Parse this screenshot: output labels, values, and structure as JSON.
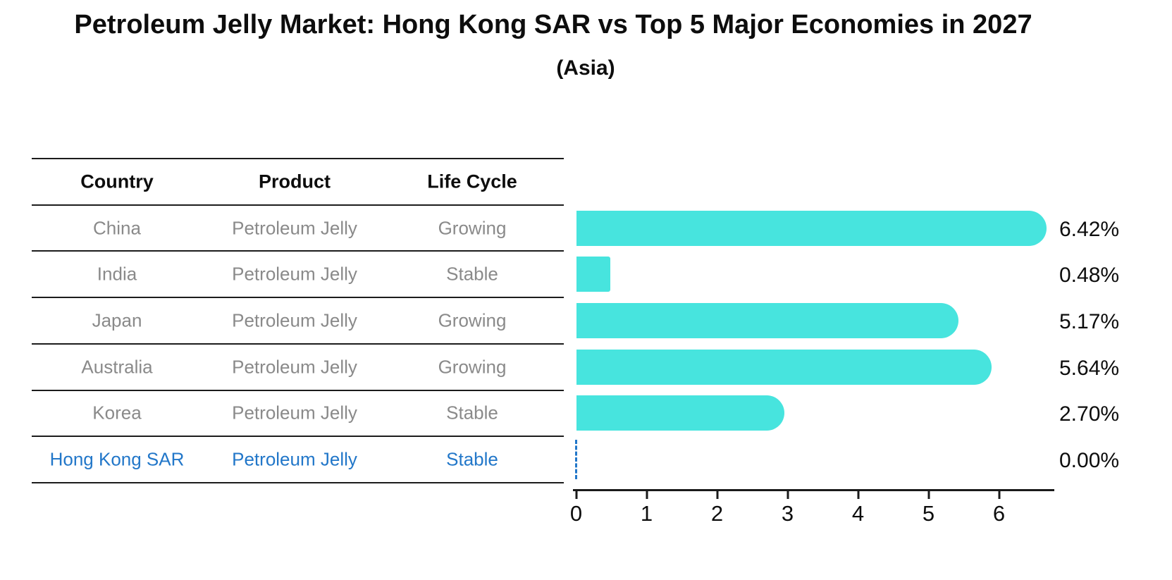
{
  "title": "Petroleum Jelly Market: Hong Kong SAR vs Top 5 Major Economies in 2027",
  "subtitle": "(Asia)",
  "table": {
    "headers": [
      "Country",
      "Product",
      "Life Cycle"
    ],
    "rows": [
      {
        "country": "China",
        "product": "Petroleum Jelly",
        "life_cycle": "Growing",
        "highlighted": false
      },
      {
        "country": "India",
        "product": "Petroleum Jelly",
        "life_cycle": "Stable",
        "highlighted": false
      },
      {
        "country": "Japan",
        "product": "Petroleum Jelly",
        "life_cycle": "Growing",
        "highlighted": false
      },
      {
        "country": "Australia",
        "product": "Petroleum Jelly",
        "life_cycle": "Growing",
        "highlighted": false
      },
      {
        "country": "Korea",
        "product": "Petroleum Jelly",
        "life_cycle": "Stable",
        "highlighted": false
      },
      {
        "country": "Hong Kong SAR",
        "product": "Petroleum Jelly",
        "life_cycle": "Stable",
        "highlighted": true
      }
    ]
  },
  "chart_data": {
    "type": "bar",
    "orientation": "horizontal",
    "title": "Petroleum Jelly Market: Hong Kong SAR vs Top 5 Major Economies in 2027",
    "subtitle": "(Asia)",
    "categories": [
      "China",
      "India",
      "Japan",
      "Australia",
      "Korea",
      "Hong Kong SAR"
    ],
    "values": [
      6.42,
      0.48,
      5.17,
      5.64,
      2.7,
      0.0
    ],
    "value_labels": [
      "6.42%",
      "0.48%",
      "5.17%",
      "5.64%",
      "2.70%",
      "0.00%"
    ],
    "x_ticks": [
      "0",
      "1",
      "2",
      "3",
      "4",
      "5",
      "6"
    ],
    "xlim": [
      0,
      6.8
    ],
    "grid": false,
    "legend": "none",
    "bar_color": "#47e4de",
    "highlight_color": "#2277c9",
    "zero_marker": "dashed-line"
  }
}
